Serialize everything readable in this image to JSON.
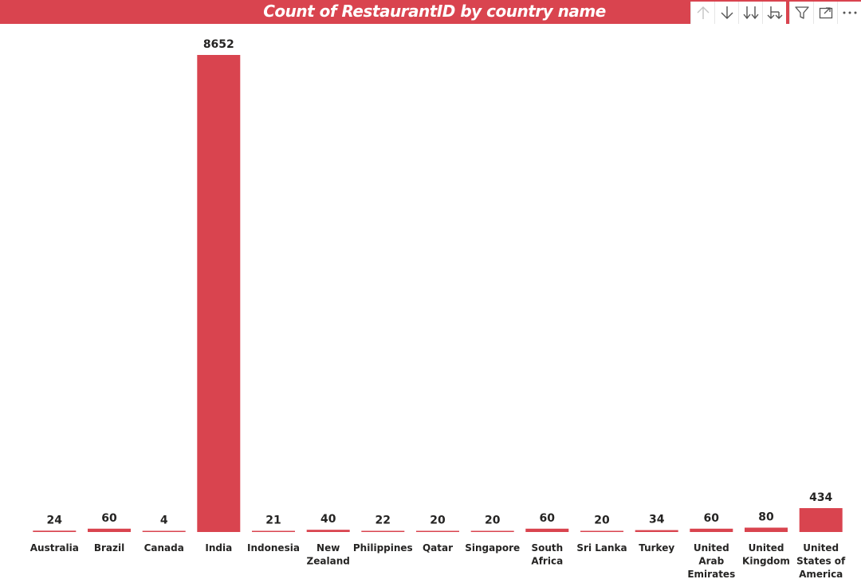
{
  "chart_data": {
    "type": "bar",
    "title": "Count of RestaurantID by country name",
    "xlabel": "",
    "ylabel": "",
    "ylim": [
      0,
      8652
    ],
    "grid": false,
    "legend": "none",
    "categories": [
      "Australia",
      "Brazil",
      "Canada",
      "India",
      "Indonesia",
      "New Zealand",
      "Philippines",
      "Qatar",
      "Singapore",
      "South Africa",
      "Sri Lanka",
      "Turkey",
      "United Arab Emirates",
      "United Kingdom",
      "United States of America"
    ],
    "values": [
      24,
      60,
      4,
      8652,
      21,
      40,
      22,
      20,
      20,
      60,
      20,
      34,
      60,
      80,
      434
    ],
    "bar_color": "#d9444f"
  },
  "toolbar": {
    "icons": [
      {
        "name": "drill-up-icon",
        "disabled": true
      },
      {
        "name": "drill-down-icon",
        "disabled": false
      },
      {
        "name": "expand-next-level-icon",
        "disabled": false
      },
      {
        "name": "expand-all-down-icon",
        "disabled": false
      },
      {
        "name": "filter-icon",
        "disabled": false
      },
      {
        "name": "focus-mode-icon",
        "disabled": false
      },
      {
        "name": "more-options-icon",
        "disabled": false
      }
    ]
  },
  "colors": {
    "title_bar": "#d9444f",
    "title_text": "#ffffff",
    "label_text": "#252423"
  }
}
